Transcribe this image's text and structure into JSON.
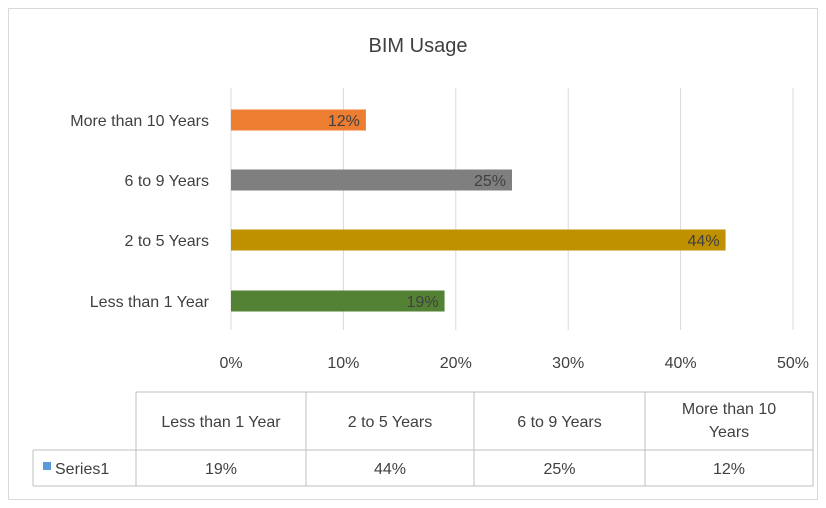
{
  "chart_data": {
    "type": "bar",
    "orientation": "horizontal",
    "title": "BIM Usage",
    "categories": [
      "Less than 1 Year",
      "2 to 5 Years",
      "6 to 9 Years",
      "More than 10 Years"
    ],
    "series": [
      {
        "name": "Series1",
        "values": [
          19,
          44,
          25,
          12
        ],
        "labels": [
          "19%",
          "44%",
          "25%",
          "12%"
        ],
        "colors": [
          "#548235",
          "#bf9000",
          "#7f7f7f",
          "#ed7d31"
        ]
      }
    ],
    "xlim": [
      0,
      50
    ],
    "x_ticks": [
      0,
      10,
      20,
      30,
      40,
      50
    ],
    "x_tick_labels": [
      "0%",
      "10%",
      "20%",
      "30%",
      "40%",
      "50%"
    ],
    "grid": true,
    "data_table": {
      "headers": [
        "Less than 1 Year",
        "2 to 5 Years",
        "6 to 9 Years",
        "More than 10 Years"
      ],
      "header_lines": [
        [
          "Less than 1 Year"
        ],
        [
          "2 to 5 Years"
        ],
        [
          "6 to 9 Years"
        ],
        [
          "More than 10",
          "Years"
        ]
      ],
      "row_label": "Series1",
      "row_values": [
        "19%",
        "44%",
        "25%",
        "12%"
      ],
      "legend_key_color": "#5b9bd5"
    }
  }
}
